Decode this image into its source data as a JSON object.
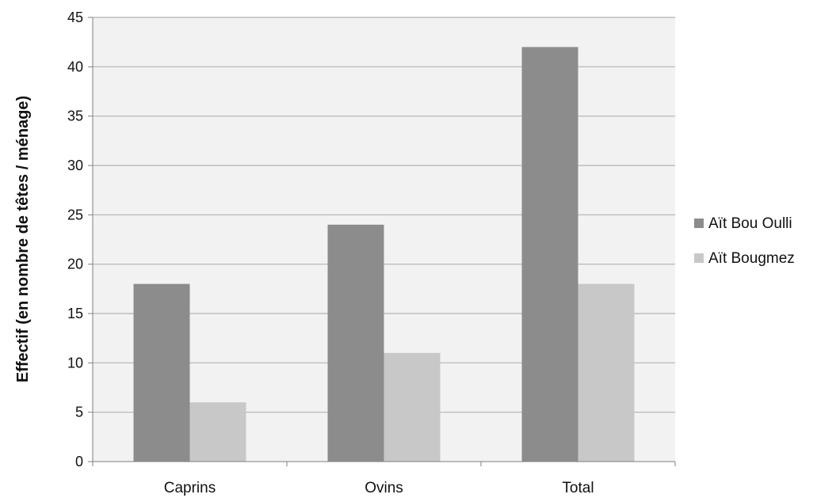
{
  "chart_data": {
    "type": "bar",
    "title": "",
    "xlabel": "",
    "ylabel": "Effectif (en nombre de têtes / ménage)",
    "ylim": [
      0,
      45
    ],
    "yticks": [
      0,
      5,
      10,
      15,
      20,
      25,
      30,
      35,
      40,
      45
    ],
    "categories": [
      "Caprins",
      "Ovins",
      "Total"
    ],
    "series": [
      {
        "name": "Aït Bou Oulli",
        "values": [
          18,
          24,
          42
        ],
        "color": "#8c8c8c"
      },
      {
        "name": "Aït Bougmez",
        "values": [
          6,
          11,
          18
        ],
        "color": "#c8c8c8"
      }
    ],
    "grid": true,
    "plot_background": "#f2f2f2",
    "legend_position": "right"
  }
}
